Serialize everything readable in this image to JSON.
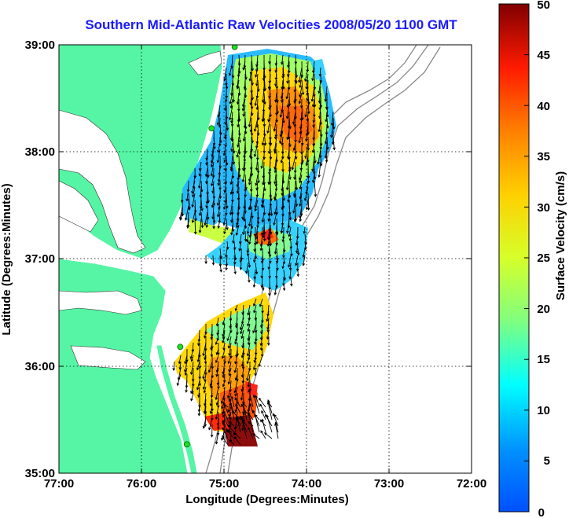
{
  "title": "Southern Mid-Atlantic Raw Velocities 2008/05/20 1100 GMT",
  "map": {
    "xlabel": "Longitude (Degrees:Minutes)",
    "ylabel": "Latitude (Degrees:Minutes)",
    "x_ticks": [
      "77:00",
      "76:00",
      "75:00",
      "74:00",
      "73:00",
      "72:00"
    ],
    "y_ticks": [
      "39:00",
      "38:00",
      "37:00",
      "36:00",
      "35:00"
    ],
    "lon_range": [
      -77,
      -72
    ],
    "lat_range": [
      35,
      39
    ],
    "land_color": "#55f5a5",
    "grid": true
  },
  "colorbar": {
    "label": "Surface Velocity (cm/s)",
    "ticks": [
      "50",
      "45",
      "40",
      "35",
      "30",
      "25",
      "20",
      "15",
      "10",
      "5",
      "0"
    ],
    "range": [
      0,
      50
    ]
  },
  "stations": [
    {
      "lon": -74.87,
      "lat": 38.98
    },
    {
      "lon": -75.15,
      "lat": 38.22
    },
    {
      "lon": -75.53,
      "lat": 36.18
    },
    {
      "lon": -75.45,
      "lat": 35.27
    }
  ]
}
